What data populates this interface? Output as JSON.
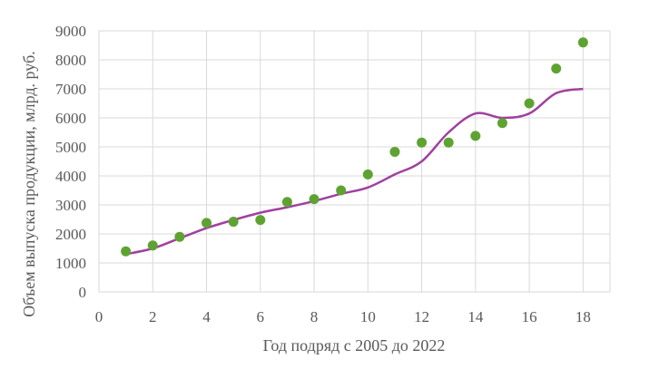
{
  "chart_data": {
    "type": "scatter",
    "title": "",
    "xlabel": "Год подряд с 2005 до 2022",
    "ylabel": "Объем выпуска продукции, млрд. руб.",
    "xlim": [
      0,
      19
    ],
    "ylim": [
      0,
      9000
    ],
    "xticks": [
      0,
      2,
      4,
      6,
      8,
      10,
      12,
      14,
      16,
      18
    ],
    "yticks": [
      0,
      1000,
      2000,
      3000,
      4000,
      5000,
      6000,
      7000,
      8000,
      9000
    ],
    "grid": true,
    "legend": "none",
    "series": [
      {
        "kind": "scatter",
        "color": "#5ea332",
        "x": [
          1,
          2,
          3,
          4,
          5,
          6,
          7,
          8,
          9,
          10,
          11,
          12,
          13,
          14,
          15,
          16,
          17,
          18
        ],
        "y": [
          1400,
          1600,
          1900,
          2380,
          2420,
          2480,
          3100,
          3200,
          3500,
          4050,
          4830,
          5150,
          5150,
          5380,
          5820,
          6500,
          7700,
          8600
        ]
      },
      {
        "kind": "line",
        "color": "#a040a0",
        "x": [
          1,
          2,
          3,
          4,
          5,
          6,
          7,
          8,
          9,
          10,
          11,
          12,
          13,
          14,
          15,
          16,
          17,
          18
        ],
        "y": [
          1300,
          1500,
          1850,
          2200,
          2480,
          2730,
          2920,
          3130,
          3380,
          3600,
          4050,
          4500,
          5500,
          6150,
          6000,
          6150,
          6850,
          7000
        ]
      }
    ]
  }
}
